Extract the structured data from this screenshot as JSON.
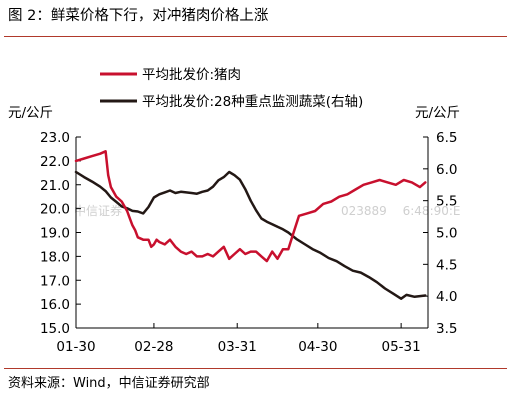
{
  "figure": {
    "title": "图 2：鲜菜价格下行，对冲猪肉价格上涨",
    "source": "资料来源：Wind，中信证券研究部",
    "watermark_left": "中信证券",
    "watermark_right": "023889 　6:48:90:E"
  },
  "colors": {
    "series1": "#c8102e",
    "series2": "#231815",
    "rule": "#b0392b"
  },
  "chart_data": {
    "type": "line",
    "x_ticks": [
      "01-30",
      "02-28",
      "03-31",
      "04-30",
      "05-31"
    ],
    "x_range": [
      "2019-01-30",
      "2019-06-10"
    ],
    "left_axis": {
      "unit": "元/公斤",
      "ylim": [
        15.0,
        23.0
      ],
      "ticks": [
        "15.0",
        "16.0",
        "17.0",
        "18.0",
        "19.0",
        "20.0",
        "21.0",
        "22.0",
        "23.0"
      ]
    },
    "right_axis": {
      "unit": "元/公斤",
      "ylim": [
        3.5,
        6.5
      ],
      "ticks": [
        "3.5",
        "4.0",
        "4.5",
        "5.0",
        "5.5",
        "6.0",
        "6.5"
      ]
    },
    "legend_placement": "top-left",
    "grid": false,
    "series": [
      {
        "name": "平均批发价:猪肉",
        "axis": "left",
        "points": [
          [
            "2019-01-30",
            22.0
          ],
          [
            "2019-02-02",
            22.1
          ],
          [
            "2019-02-05",
            22.2
          ],
          [
            "2019-02-08",
            22.3
          ],
          [
            "2019-02-10",
            22.4
          ],
          [
            "2019-02-11",
            21.4
          ],
          [
            "2019-02-12",
            20.9
          ],
          [
            "2019-02-14",
            20.5
          ],
          [
            "2019-02-16",
            20.3
          ],
          [
            "2019-02-18",
            19.9
          ],
          [
            "2019-02-20",
            19.3
          ],
          [
            "2019-02-21",
            19.1
          ],
          [
            "2019-02-22",
            18.8
          ],
          [
            "2019-02-24",
            18.7
          ],
          [
            "2019-02-26",
            18.7
          ],
          [
            "2019-02-27",
            18.4
          ],
          [
            "2019-02-28",
            18.5
          ],
          [
            "2019-03-01",
            18.7
          ],
          [
            "2019-03-02",
            18.6
          ],
          [
            "2019-03-04",
            18.5
          ],
          [
            "2019-03-06",
            18.7
          ],
          [
            "2019-03-08",
            18.4
          ],
          [
            "2019-03-10",
            18.2
          ],
          [
            "2019-03-12",
            18.1
          ],
          [
            "2019-03-14",
            18.2
          ],
          [
            "2019-03-16",
            18.0
          ],
          [
            "2019-03-18",
            18.0
          ],
          [
            "2019-03-20",
            18.1
          ],
          [
            "2019-03-22",
            18.0
          ],
          [
            "2019-03-24",
            18.2
          ],
          [
            "2019-03-26",
            18.4
          ],
          [
            "2019-03-28",
            17.9
          ],
          [
            "2019-03-30",
            18.1
          ],
          [
            "2019-04-01",
            18.3
          ],
          [
            "2019-04-03",
            18.1
          ],
          [
            "2019-04-05",
            18.2
          ],
          [
            "2019-04-07",
            18.2
          ],
          [
            "2019-04-09",
            18.0
          ],
          [
            "2019-04-11",
            17.8
          ],
          [
            "2019-04-13",
            18.2
          ],
          [
            "2019-04-15",
            17.9
          ],
          [
            "2019-04-17",
            18.3
          ],
          [
            "2019-04-19",
            18.3
          ],
          [
            "2019-04-21",
            19.0
          ],
          [
            "2019-04-23",
            19.7
          ],
          [
            "2019-04-26",
            19.8
          ],
          [
            "2019-04-29",
            19.9
          ],
          [
            "2019-05-02",
            20.2
          ],
          [
            "2019-05-05",
            20.3
          ],
          [
            "2019-05-08",
            20.5
          ],
          [
            "2019-05-11",
            20.6
          ],
          [
            "2019-05-14",
            20.8
          ],
          [
            "2019-05-17",
            21.0
          ],
          [
            "2019-05-20",
            21.1
          ],
          [
            "2019-05-23",
            21.2
          ],
          [
            "2019-05-26",
            21.1
          ],
          [
            "2019-05-29",
            21.0
          ],
          [
            "2019-06-01",
            21.2
          ],
          [
            "2019-06-04",
            21.1
          ],
          [
            "2019-06-07",
            20.9
          ],
          [
            "2019-06-09",
            21.1
          ]
        ]
      },
      {
        "name": "平均批发价:28种重点监测蔬菜(右轴)",
        "axis": "right",
        "points": [
          [
            "2019-01-30",
            5.95
          ],
          [
            "2019-02-02",
            5.87
          ],
          [
            "2019-02-05",
            5.8
          ],
          [
            "2019-02-08",
            5.72
          ],
          [
            "2019-02-10",
            5.65
          ],
          [
            "2019-02-12",
            5.55
          ],
          [
            "2019-02-14",
            5.48
          ],
          [
            "2019-02-16",
            5.41
          ],
          [
            "2019-02-18",
            5.38
          ],
          [
            "2019-02-20",
            5.34
          ],
          [
            "2019-02-22",
            5.33
          ],
          [
            "2019-02-24",
            5.3
          ],
          [
            "2019-02-26",
            5.4
          ],
          [
            "2019-02-28",
            5.55
          ],
          [
            "2019-03-02",
            5.6
          ],
          [
            "2019-03-04",
            5.63
          ],
          [
            "2019-03-06",
            5.66
          ],
          [
            "2019-03-08",
            5.62
          ],
          [
            "2019-03-10",
            5.64
          ],
          [
            "2019-03-12",
            5.63
          ],
          [
            "2019-03-14",
            5.62
          ],
          [
            "2019-03-16",
            5.61
          ],
          [
            "2019-03-18",
            5.64
          ],
          [
            "2019-03-20",
            5.66
          ],
          [
            "2019-03-22",
            5.72
          ],
          [
            "2019-03-24",
            5.82
          ],
          [
            "2019-03-26",
            5.87
          ],
          [
            "2019-03-28",
            5.95
          ],
          [
            "2019-03-30",
            5.9
          ],
          [
            "2019-04-01",
            5.83
          ],
          [
            "2019-04-03",
            5.68
          ],
          [
            "2019-04-05",
            5.5
          ],
          [
            "2019-04-07",
            5.35
          ],
          [
            "2019-04-09",
            5.22
          ],
          [
            "2019-04-11",
            5.17
          ],
          [
            "2019-04-13",
            5.13
          ],
          [
            "2019-04-15",
            5.09
          ],
          [
            "2019-04-17",
            5.05
          ],
          [
            "2019-04-19",
            5.0
          ],
          [
            "2019-04-22",
            4.9
          ],
          [
            "2019-04-25",
            4.82
          ],
          [
            "2019-04-28",
            4.74
          ],
          [
            "2019-05-01",
            4.68
          ],
          [
            "2019-05-04",
            4.6
          ],
          [
            "2019-05-07",
            4.55
          ],
          [
            "2019-05-10",
            4.47
          ],
          [
            "2019-05-13",
            4.4
          ],
          [
            "2019-05-16",
            4.37
          ],
          [
            "2019-05-19",
            4.3
          ],
          [
            "2019-05-22",
            4.22
          ],
          [
            "2019-05-25",
            4.12
          ],
          [
            "2019-05-28",
            4.04
          ],
          [
            "2019-05-31",
            3.96
          ],
          [
            "2019-06-02",
            4.02
          ],
          [
            "2019-06-05",
            3.99
          ],
          [
            "2019-06-09",
            4.01
          ]
        ]
      }
    ]
  }
}
